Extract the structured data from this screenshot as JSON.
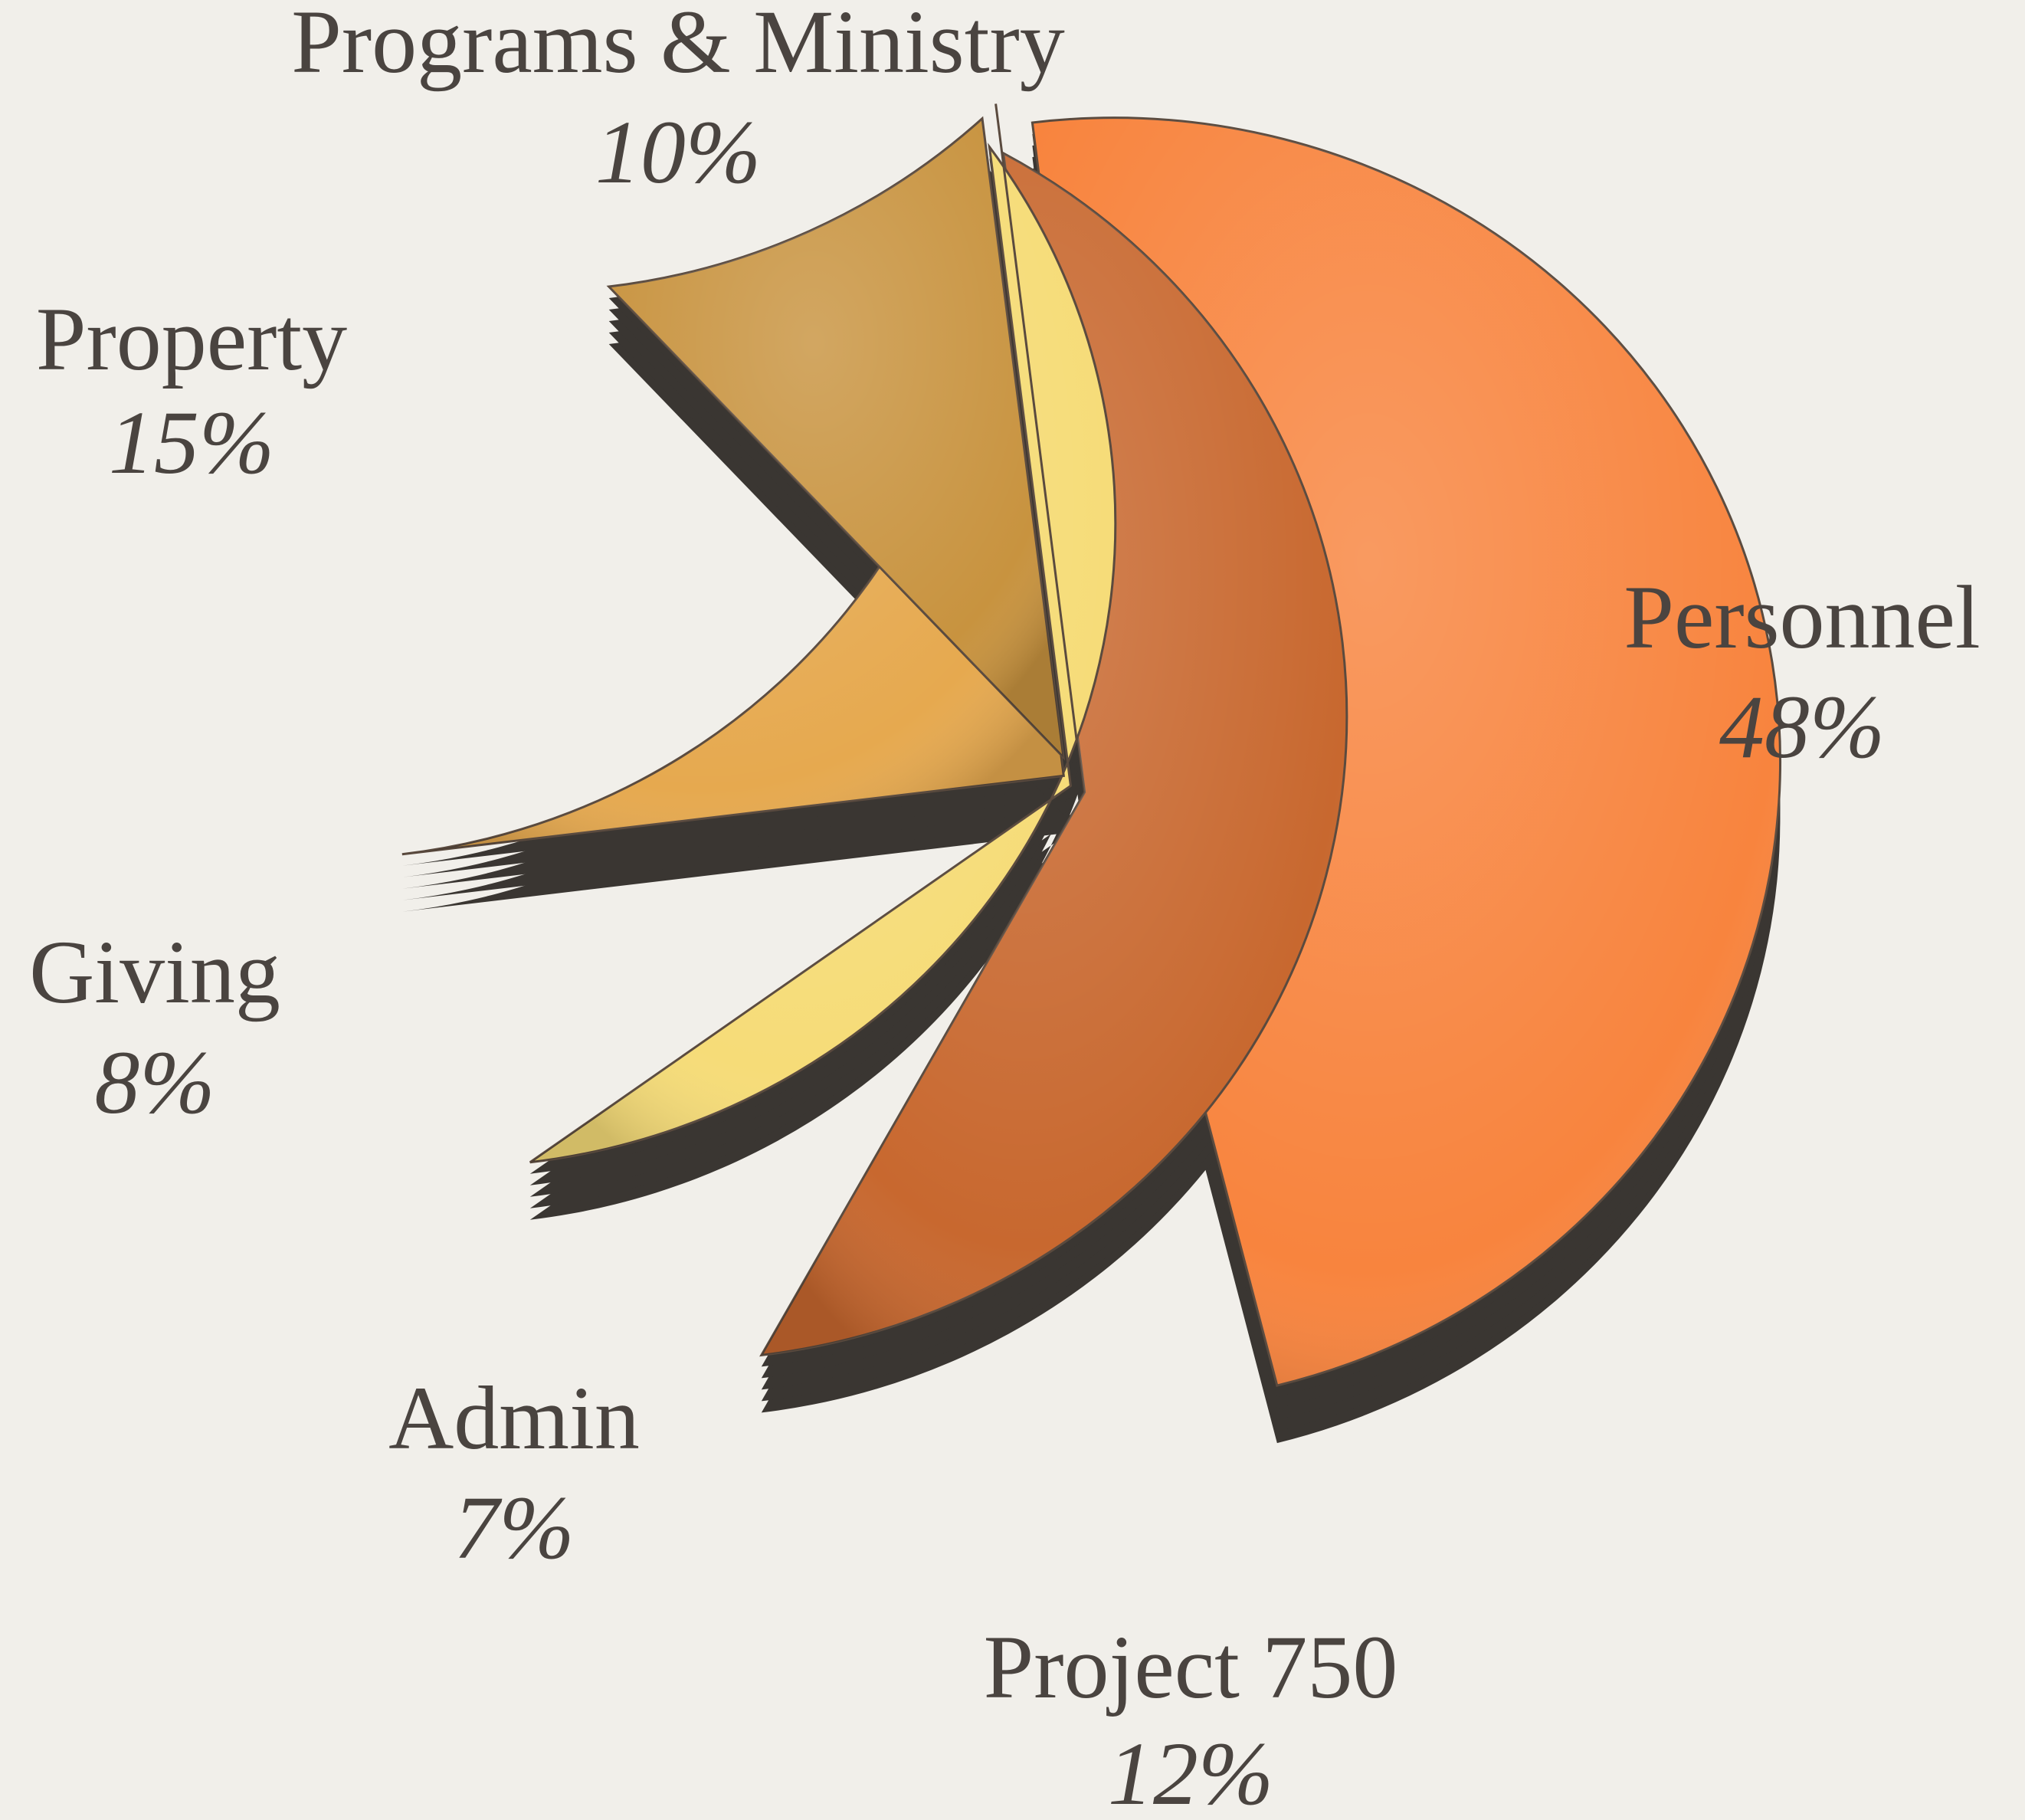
{
  "chart_data": {
    "type": "pie",
    "categories": [
      "Personnel",
      "Project 750",
      "Admin",
      "Giving",
      "Property",
      "Programs & Ministry"
    ],
    "values": [
      48,
      12,
      7,
      8,
      15,
      10
    ],
    "value_labels": [
      "48%",
      "12%",
      "7%",
      "8%",
      "15%",
      "10%"
    ],
    "colors": [
      "#f8843e",
      "#c8682f",
      "#f6dc78",
      "#e6a94f",
      "#c8933f",
      "#a89a85"
    ]
  }
}
